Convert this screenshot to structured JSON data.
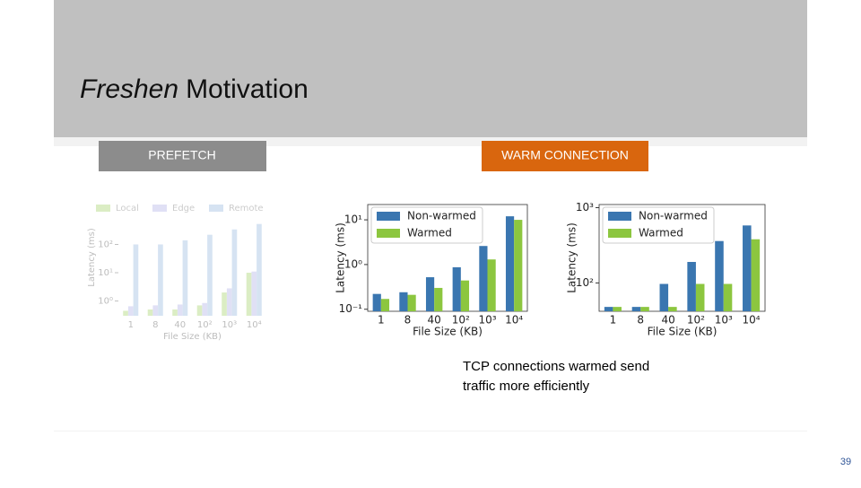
{
  "slide": {
    "title_italic": "Freshen",
    "title_rest": "Motivation",
    "left_label": "PREFETCH",
    "right_label": "WARM CONNECTION",
    "caption_lines": [
      "TCP connections warmed send",
      "traffic more efficiently"
    ],
    "page_number": "39"
  },
  "chart_data": [
    {
      "type": "bar",
      "log_scale": true,
      "faded": true,
      "legend": "top",
      "ylabel": "Latency (ms)",
      "xlabel": "File Size (KB)",
      "categories": [
        "1",
        "8",
        "40",
        "10²",
        "10³",
        "10⁴"
      ],
      "series": [
        {
          "name": "Local",
          "color": "#8cc63f",
          "values": [
            0.45,
            0.5,
            0.5,
            0.7,
            2,
            10
          ]
        },
        {
          "name": "Edge",
          "color": "#9b9be0",
          "values": [
            0.65,
            0.7,
            0.75,
            0.85,
            2.8,
            11
          ]
        },
        {
          "name": "Remote",
          "color": "#7aa6d6",
          "values": [
            100,
            100,
            140,
            220,
            340,
            530
          ]
        }
      ],
      "ylim": [
        0.3,
        4000
      ],
      "yticks": [
        {
          "value": 1,
          "label": "10⁰"
        },
        {
          "value": 10,
          "label": "10¹"
        },
        {
          "value": 100,
          "label": "10²"
        }
      ]
    },
    {
      "type": "bar",
      "log_scale": true,
      "legend": "upper left",
      "ylabel": "Latency (ms)",
      "xlabel": "File Size (KB)",
      "categories": [
        "1",
        "8",
        "40",
        "10²",
        "10³",
        "10⁴"
      ],
      "series": [
        {
          "name": "Non-warmed",
          "color": "#3a76b0",
          "values": [
            0.22,
            0.24,
            0.52,
            0.87,
            2.6,
            12
          ]
        },
        {
          "name": "Warmed",
          "color": "#8cc63f",
          "values": [
            0.17,
            0.21,
            0.3,
            0.44,
            1.3,
            10
          ]
        }
      ],
      "ylim": [
        0.09,
        22
      ],
      "yticks": [
        {
          "value": 0.1,
          "label": "10⁻¹"
        },
        {
          "value": 1,
          "label": "10⁰"
        },
        {
          "value": 10,
          "label": "10¹"
        }
      ]
    },
    {
      "type": "bar",
      "log_scale": true,
      "legend": "upper left",
      "ylabel": "Latency (ms)",
      "xlabel": "File Size (KB)",
      "categories": [
        "1",
        "8",
        "40",
        "10²",
        "10³",
        "10⁴"
      ],
      "series": [
        {
          "name": "Non-warmed",
          "color": "#3a76b0",
          "values": [
            48,
            48,
            97,
            190,
            360,
            580
          ]
        },
        {
          "name": "Warmed",
          "color": "#8cc63f",
          "values": [
            48,
            48,
            48,
            97,
            97,
            380
          ]
        }
      ],
      "ylim": [
        42,
        1100
      ],
      "yticks": [
        {
          "value": 100,
          "label": "10²"
        },
        {
          "value": 1000,
          "label": "10³"
        }
      ]
    }
  ]
}
